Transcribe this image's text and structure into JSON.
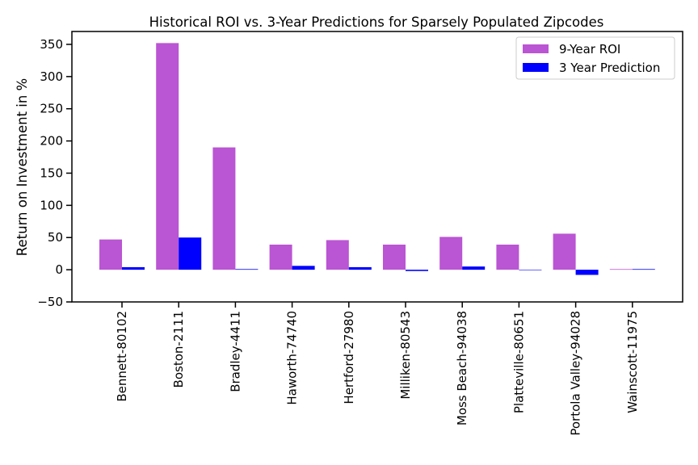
{
  "chart_data": {
    "type": "bar",
    "title": "Historical ROI vs. 3-Year Predictions for Sparsely Populated Zipcodes",
    "xlabel": "",
    "ylabel": "Return on Investment in %",
    "ylim": [
      -50,
      370
    ],
    "yticks": [
      -50,
      0,
      50,
      100,
      150,
      200,
      250,
      300,
      350
    ],
    "grid": false,
    "legend_position": "top-right",
    "categories": [
      "Bennett-80102",
      "Boston-2111",
      "Bradley-4411",
      "Haworth-74740",
      "Hertford-27980",
      "Milliken-80543",
      "Moss Beach-94038",
      "Platteville-80651",
      "Portola Valley-94028",
      "Wainscott-11975"
    ],
    "series": [
      {
        "name": "9-Year ROI",
        "color": "#ba55d3",
        "values": [
          47,
          352,
          190,
          39,
          46,
          39,
          51,
          39,
          56,
          1
        ]
      },
      {
        "name": "3 Year Prediction",
        "color": "#0000ff",
        "values": [
          4,
          50,
          1,
          6,
          4,
          -2,
          5,
          0,
          -8,
          1
        ]
      }
    ]
  }
}
